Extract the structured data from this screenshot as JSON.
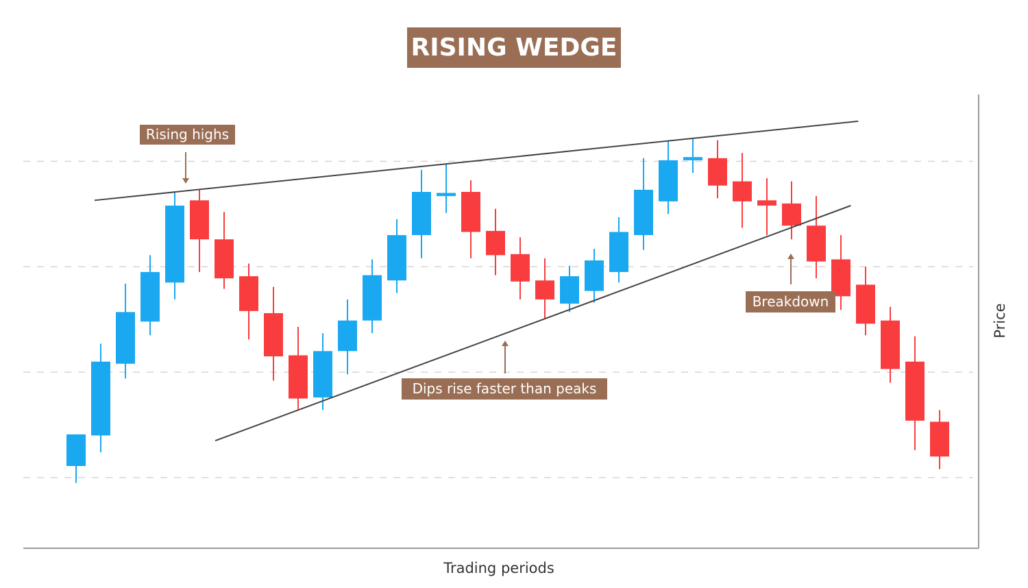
{
  "chart_data": {
    "type": "candlestick",
    "title": "RISING WEDGE",
    "x_label": "Trading periods",
    "y_label": "Price",
    "up_color": "#1aa8f0",
    "down_color": "#f93d3f",
    "title_color": "#9a6e54",
    "ylim": [
      3.3,
      46.2
    ],
    "yticks": [
      10,
      20,
      30,
      40
    ],
    "grid": true,
    "tick_labels": false,
    "open": [
      11.1,
      14.0,
      20.8,
      24.8,
      28.5,
      36.3,
      32.6,
      29.1,
      25.6,
      21.6,
      17.6,
      22.0,
      24.9,
      28.7,
      33.0,
      36.7,
      37.1,
      33.4,
      31.2,
      28.7,
      26.5,
      27.7,
      29.5,
      33.0,
      36.2,
      40.1,
      40.3,
      38.1,
      36.3,
      36.0,
      33.9,
      30.7,
      28.3,
      24.9,
      21.0,
      15.3
    ],
    "high": [
      14.1,
      22.7,
      28.4,
      31.1,
      37.1,
      37.3,
      35.2,
      30.3,
      28.1,
      24.3,
      23.7,
      26.9,
      30.7,
      34.5,
      39.2,
      39.7,
      38.2,
      35.5,
      32.8,
      30.8,
      30.1,
      31.7,
      34.7,
      40.3,
      41.9,
      42.1,
      42.0,
      40.8,
      38.4,
      38.1,
      36.7,
      33.0,
      30.0,
      26.2,
      23.4,
      16.4
    ],
    "low": [
      9.5,
      12.4,
      19.4,
      23.5,
      26.9,
      29.5,
      27.9,
      23.1,
      19.2,
      16.5,
      16.4,
      19.8,
      23.7,
      27.5,
      30.8,
      35.1,
      30.8,
      29.2,
      26.9,
      25.1,
      25.7,
      26.6,
      28.5,
      31.6,
      35.0,
      38.9,
      36.5,
      33.7,
      33.0,
      32.6,
      28.9,
      25.9,
      23.5,
      19.0,
      12.6,
      10.8
    ],
    "close": [
      14.1,
      21.0,
      25.7,
      29.5,
      35.8,
      32.6,
      28.9,
      25.8,
      21.5,
      17.5,
      22.0,
      24.9,
      29.2,
      33.0,
      37.1,
      37.0,
      33.3,
      31.1,
      28.6,
      26.9,
      29.1,
      30.6,
      33.3,
      37.3,
      40.1,
      40.4,
      37.7,
      36.2,
      35.8,
      33.9,
      30.5,
      27.2,
      24.6,
      20.3,
      15.4,
      12.0
    ],
    "trendlines": [
      {
        "x": [
          0.75,
          31.7
        ],
        "y": [
          36.3,
          43.8
        ]
      },
      {
        "x": [
          5.64,
          31.4
        ],
        "y": [
          13.5,
          35.8
        ]
      }
    ],
    "annotations": [
      {
        "text": "Rising highs"
      },
      {
        "text": "Dips rise faster than peaks"
      },
      {
        "text": "Breakdown"
      }
    ]
  }
}
